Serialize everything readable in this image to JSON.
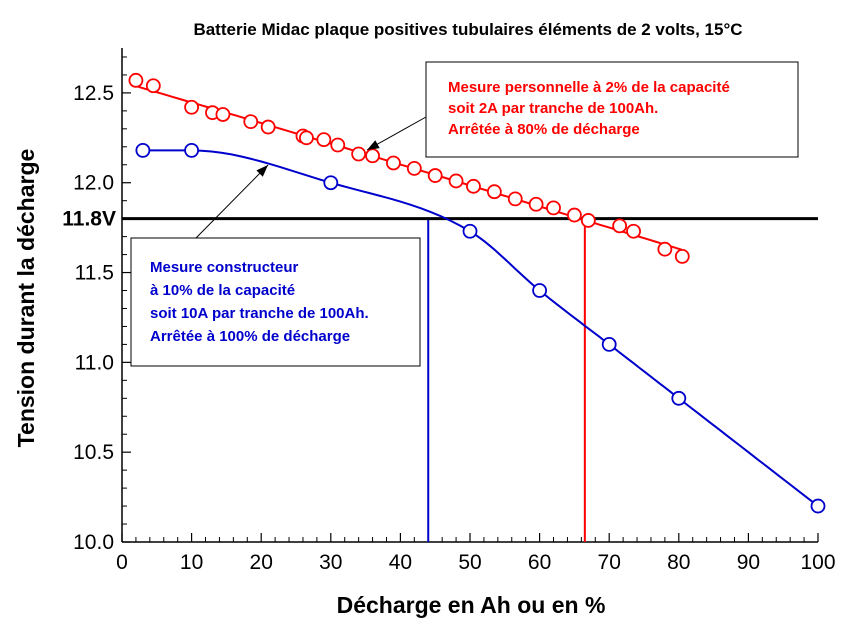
{
  "chart_data": {
    "type": "line",
    "title": "Batterie Midac plaque positives tubulaires éléments de 2 volts, 15°C",
    "xlabel": "Décharge en Ah ou en %",
    "ylabel": "Tension durant la décharge",
    "xlim": [
      0,
      100
    ],
    "ylim": [
      10.0,
      12.75
    ],
    "x_ticks": [
      "0",
      "10",
      "20",
      "30",
      "40",
      "50",
      "60",
      "70",
      "80",
      "90",
      "100"
    ],
    "y_ticks": [
      "10.0",
      "10.5",
      "11.0",
      "11.5",
      "12.0",
      "12.5"
    ],
    "grid": false,
    "reference_line": {
      "label": "11.8V",
      "y": 11.8,
      "color": "#000000"
    },
    "series": [
      {
        "name": "Mesure personnelle",
        "color": "#ff0000",
        "x": [
          2,
          4.5,
          10,
          13,
          14.5,
          18.5,
          21,
          26,
          26.5,
          29,
          31,
          34,
          36,
          39,
          42,
          45,
          48,
          50.5,
          53.5,
          56.5,
          59.5,
          62,
          65,
          67,
          71.5,
          73.5,
          78,
          80.5
        ],
        "y": [
          12.57,
          12.54,
          12.42,
          12.39,
          12.38,
          12.34,
          12.31,
          12.26,
          12.25,
          12.24,
          12.21,
          12.16,
          12.15,
          12.11,
          12.08,
          12.04,
          12.01,
          11.98,
          11.95,
          11.91,
          11.88,
          11.86,
          11.82,
          11.79,
          11.76,
          11.73,
          11.63,
          11.59
        ],
        "drop_x": 66.5
      },
      {
        "name": "Mesure constructeur",
        "color": "#0000cc",
        "x": [
          3,
          10,
          30,
          50,
          60,
          70,
          80,
          100
        ],
        "y": [
          12.18,
          12.18,
          12.0,
          11.73,
          11.4,
          11.1,
          10.8,
          10.2
        ],
        "drop_x": 44
      }
    ],
    "annotations": [
      {
        "lines": [
          "Mesure personnelle à 2% de la capacité",
          "soit 2A par tranche de 100Ah.",
          "Arrêtée à 80% de décharge"
        ],
        "color": "#ff0000"
      },
      {
        "lines": [
          "Mesure constructeur",
          "à 10% de la capacité",
          "soit 10A par tranche de 100Ah.",
          "Arrêtée à 100% de décharge"
        ],
        "color": "#0000cc"
      }
    ]
  }
}
